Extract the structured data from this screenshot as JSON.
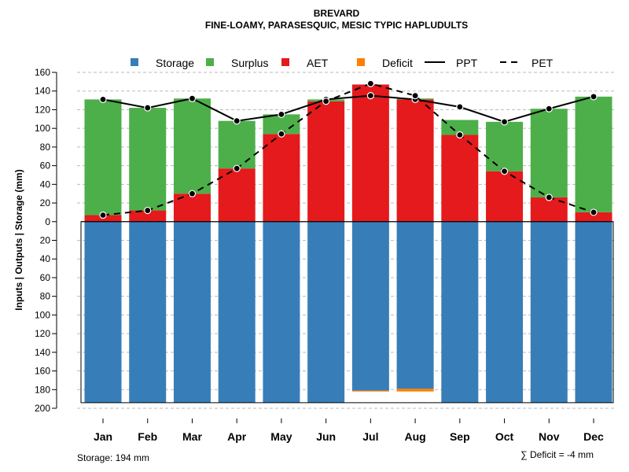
{
  "chart_data": {
    "type": "bar",
    "title": "BREVARD",
    "subtitle": "FINE-LOAMY, PARASESQUIC, MESIC TYPIC HAPLUDULTS",
    "ylabel": "Inputs | Outputs | Storage    (mm)",
    "ylim": [
      -200,
      160
    ],
    "yticks": [
      160,
      140,
      120,
      100,
      80,
      60,
      40,
      20,
      0,
      -20,
      -40,
      -60,
      -80,
      -100,
      -120,
      -140,
      -160,
      -180,
      -200
    ],
    "ytick_labels": [
      "160",
      "140",
      "120",
      "100",
      "80",
      "60",
      "40",
      "20",
      "0",
      "20",
      "40",
      "60",
      "80",
      "100",
      "120",
      "140",
      "160",
      "180",
      "200"
    ],
    "categories": [
      "Jan",
      "Feb",
      "Mar",
      "Apr",
      "May",
      "Jun",
      "Jul",
      "Aug",
      "Sep",
      "Oct",
      "Nov",
      "Dec"
    ],
    "legend": [
      "Storage",
      "Surplus",
      "AET",
      "Deficit",
      "PPT",
      "PET"
    ],
    "colors": {
      "storage": "#377eb8",
      "surplus": "#4daf4a",
      "aet": "#e41a1c",
      "deficit": "#ff7f00",
      "line": "#000000",
      "grid": "#bbbbbb"
    },
    "series": [
      {
        "name": "AET",
        "values": [
          7,
          12,
          30,
          57,
          94,
          129,
          147,
          131,
          93,
          54,
          26,
          10
        ]
      },
      {
        "name": "Surplus",
        "values": [
          124,
          110,
          102,
          51,
          21,
          2,
          0,
          1,
          16,
          53,
          95,
          124
        ]
      },
      {
        "name": "Storage",
        "values": [
          -194,
          -194,
          -194,
          -194,
          -194,
          -194,
          -181,
          -179,
          -194,
          -194,
          -194,
          -194
        ]
      },
      {
        "name": "Deficit",
        "values": [
          0,
          0,
          0,
          0,
          0,
          0,
          -1,
          -3,
          0,
          0,
          0,
          0
        ]
      },
      {
        "name": "PPT",
        "values": [
          131,
          122,
          132,
          108,
          115,
          131,
          135,
          131,
          123,
          107,
          121,
          134
        ]
      },
      {
        "name": "PET",
        "values": [
          7,
          12,
          30,
          57,
          94,
          129,
          148,
          135,
          93,
          54,
          26,
          10
        ]
      }
    ],
    "footer_left": "Storage: 194 mm",
    "footer_right": "∑ Deficit = -4 mm"
  }
}
